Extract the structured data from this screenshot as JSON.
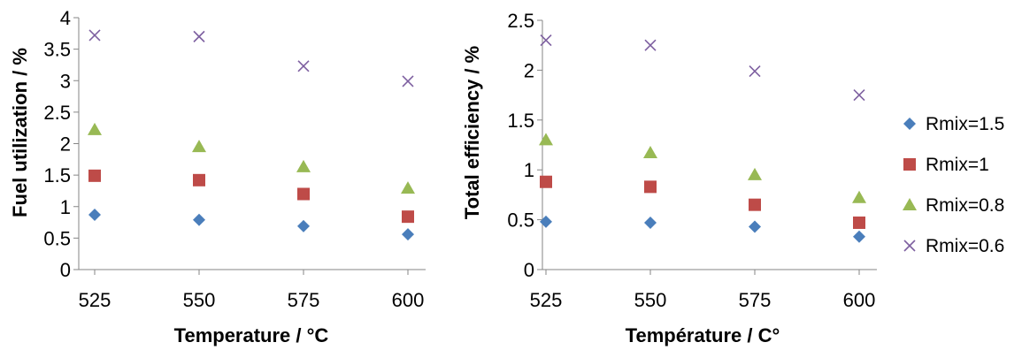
{
  "chart_data": [
    {
      "type": "scatter",
      "title": "",
      "xlabel": "Temperature / °C",
      "ylabel": "Fuel utilization / %",
      "x": [
        525,
        550,
        575,
        600
      ],
      "x_ticks": [
        "525",
        "550",
        "575",
        "600"
      ],
      "y_ticks": [
        "0",
        "0.5",
        "1",
        "1.5",
        "2",
        "2.5",
        "3",
        "3.5",
        "4"
      ],
      "ylim": [
        0,
        4
      ],
      "xlim": [
        525,
        600
      ],
      "grid": false,
      "series": [
        {
          "name": "Rmix=1.5",
          "values": [
            0.87,
            0.79,
            0.69,
            0.56
          ],
          "color": "#4a7ebb",
          "marker": "diamond"
        },
        {
          "name": "Rmix=1",
          "values": [
            1.49,
            1.42,
            1.2,
            0.84
          ],
          "color": "#be4b48",
          "marker": "square"
        },
        {
          "name": "Rmix=0.8",
          "values": [
            2.22,
            1.95,
            1.63,
            1.29
          ],
          "color": "#98b954",
          "marker": "triangle"
        },
        {
          "name": "Rmix=0.6",
          "values": [
            3.72,
            3.7,
            3.23,
            2.99
          ],
          "color": "#7d5fa0",
          "marker": "x"
        }
      ]
    },
    {
      "type": "scatter",
      "title": "",
      "xlabel": "Température / C°",
      "ylabel": "Total efficiency / %",
      "x": [
        525,
        550,
        575,
        600
      ],
      "x_ticks": [
        "525",
        "550",
        "575",
        "600"
      ],
      "y_ticks": [
        "0",
        "0.5",
        "1",
        "1.5",
        "2",
        "2.5"
      ],
      "ylim": [
        0,
        2.5
      ],
      "xlim": [
        525,
        600
      ],
      "grid": false,
      "legend_position": "right",
      "series": [
        {
          "name": "Rmix=1.5",
          "values": [
            0.48,
            0.47,
            0.43,
            0.33
          ],
          "color": "#4a7ebb",
          "marker": "diamond"
        },
        {
          "name": "Rmix=1",
          "values": [
            0.88,
            0.83,
            0.65,
            0.47
          ],
          "color": "#be4b48",
          "marker": "square"
        },
        {
          "name": "Rmix=0.8",
          "values": [
            1.3,
            1.17,
            0.95,
            0.72
          ],
          "color": "#98b954",
          "marker": "triangle"
        },
        {
          "name": "Rmix=0.6",
          "values": [
            2.3,
            2.25,
            1.99,
            1.75
          ],
          "color": "#7d5fa0",
          "marker": "x"
        }
      ]
    }
  ],
  "legend": {
    "position": "right",
    "entries": [
      {
        "label": "Rmix=1.5",
        "color": "#4a7ebb",
        "marker": "diamond"
      },
      {
        "label": "Rmix=1",
        "color": "#be4b48",
        "marker": "square"
      },
      {
        "label": "Rmix=0.8",
        "color": "#98b954",
        "marker": "triangle"
      },
      {
        "label": "Rmix=0.6",
        "color": "#7d5fa0",
        "marker": "x"
      }
    ]
  }
}
